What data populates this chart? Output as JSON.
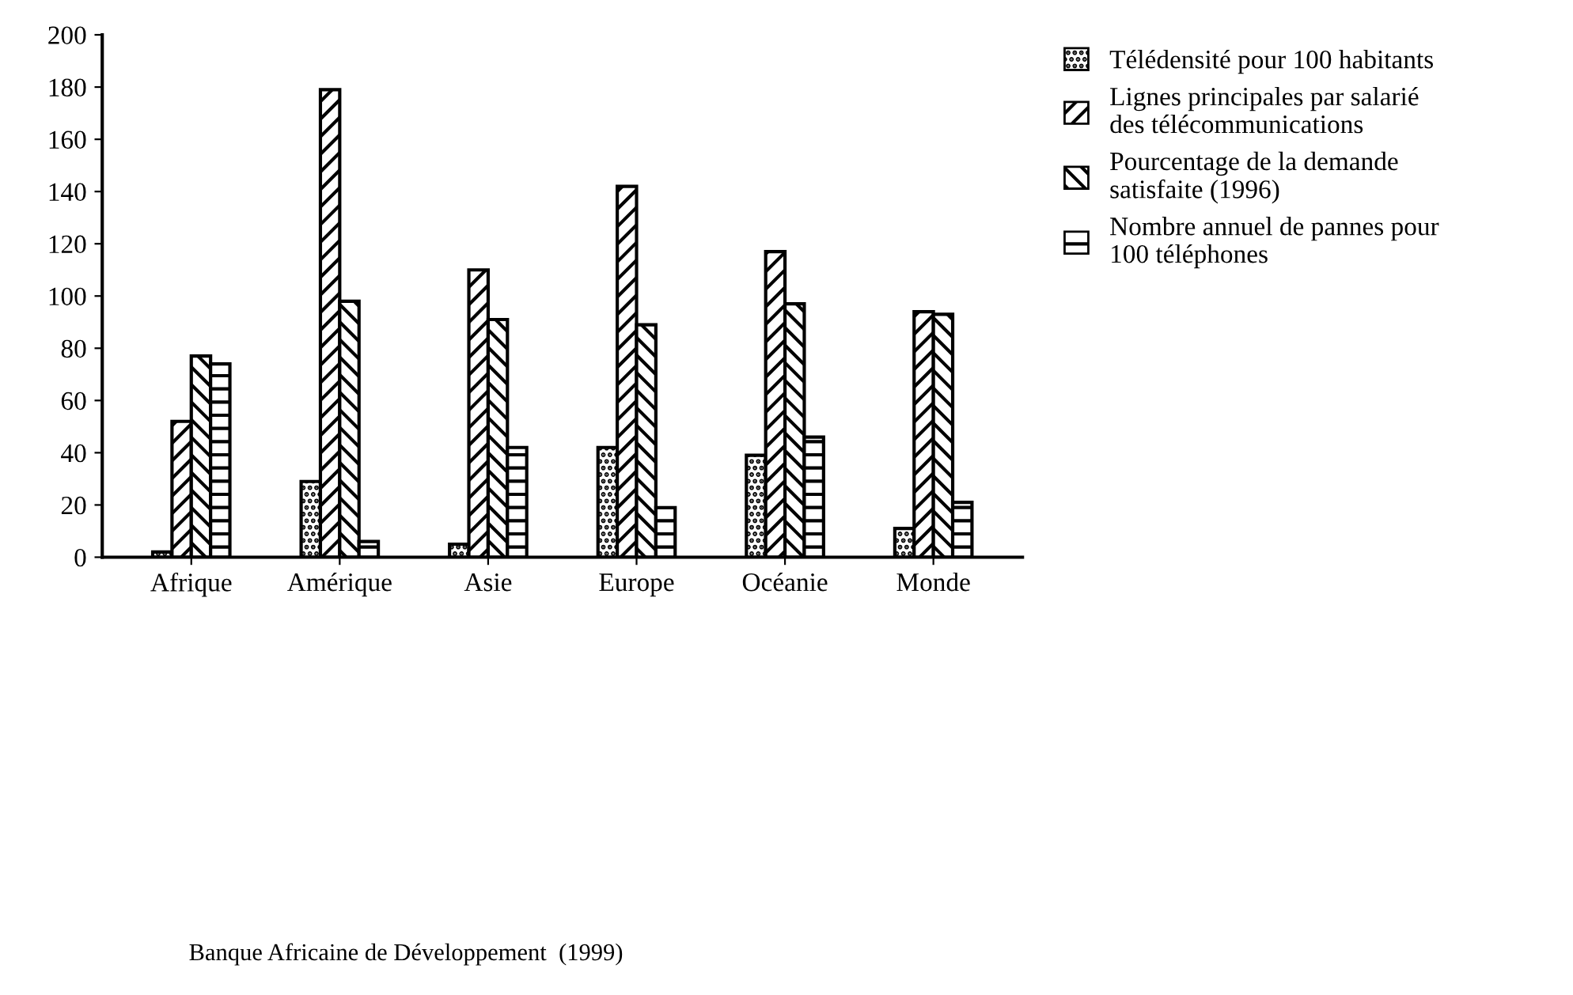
{
  "chart_data": {
    "type": "bar",
    "categories": [
      "Afrique",
      "Amérique",
      "Asie",
      "Europe",
      "Océanie",
      "Monde"
    ],
    "series": [
      {
        "name": "Télédensité pour 100 habitants",
        "color": "#000000",
        "values": [
          2,
          29,
          5,
          42,
          39,
          11
        ]
      },
      {
        "name": "Lignes principales par salarié des télécommunications",
        "color": "#000000",
        "values": [
          52,
          179,
          110,
          142,
          117,
          94
        ]
      },
      {
        "name": "Pourcentage de la demande satisfaite (1996)",
        "color": "#000000",
        "values": [
          77,
          98,
          91,
          89,
          97,
          93
        ]
      },
      {
        "name": "Nombre annuel de pannes pour 100 téléphones",
        "color": "#000000",
        "values": [
          74,
          6,
          42,
          19,
          46,
          21
        ]
      }
    ],
    "ylim": [
      0,
      200
    ],
    "yticks": [
      0,
      20,
      40,
      60,
      80,
      100,
      120,
      140,
      160,
      180,
      200
    ],
    "grid": false,
    "legend": "top right",
    "annotations": [
      "Banque Africaine de Développement  (1999)"
    ]
  }
}
